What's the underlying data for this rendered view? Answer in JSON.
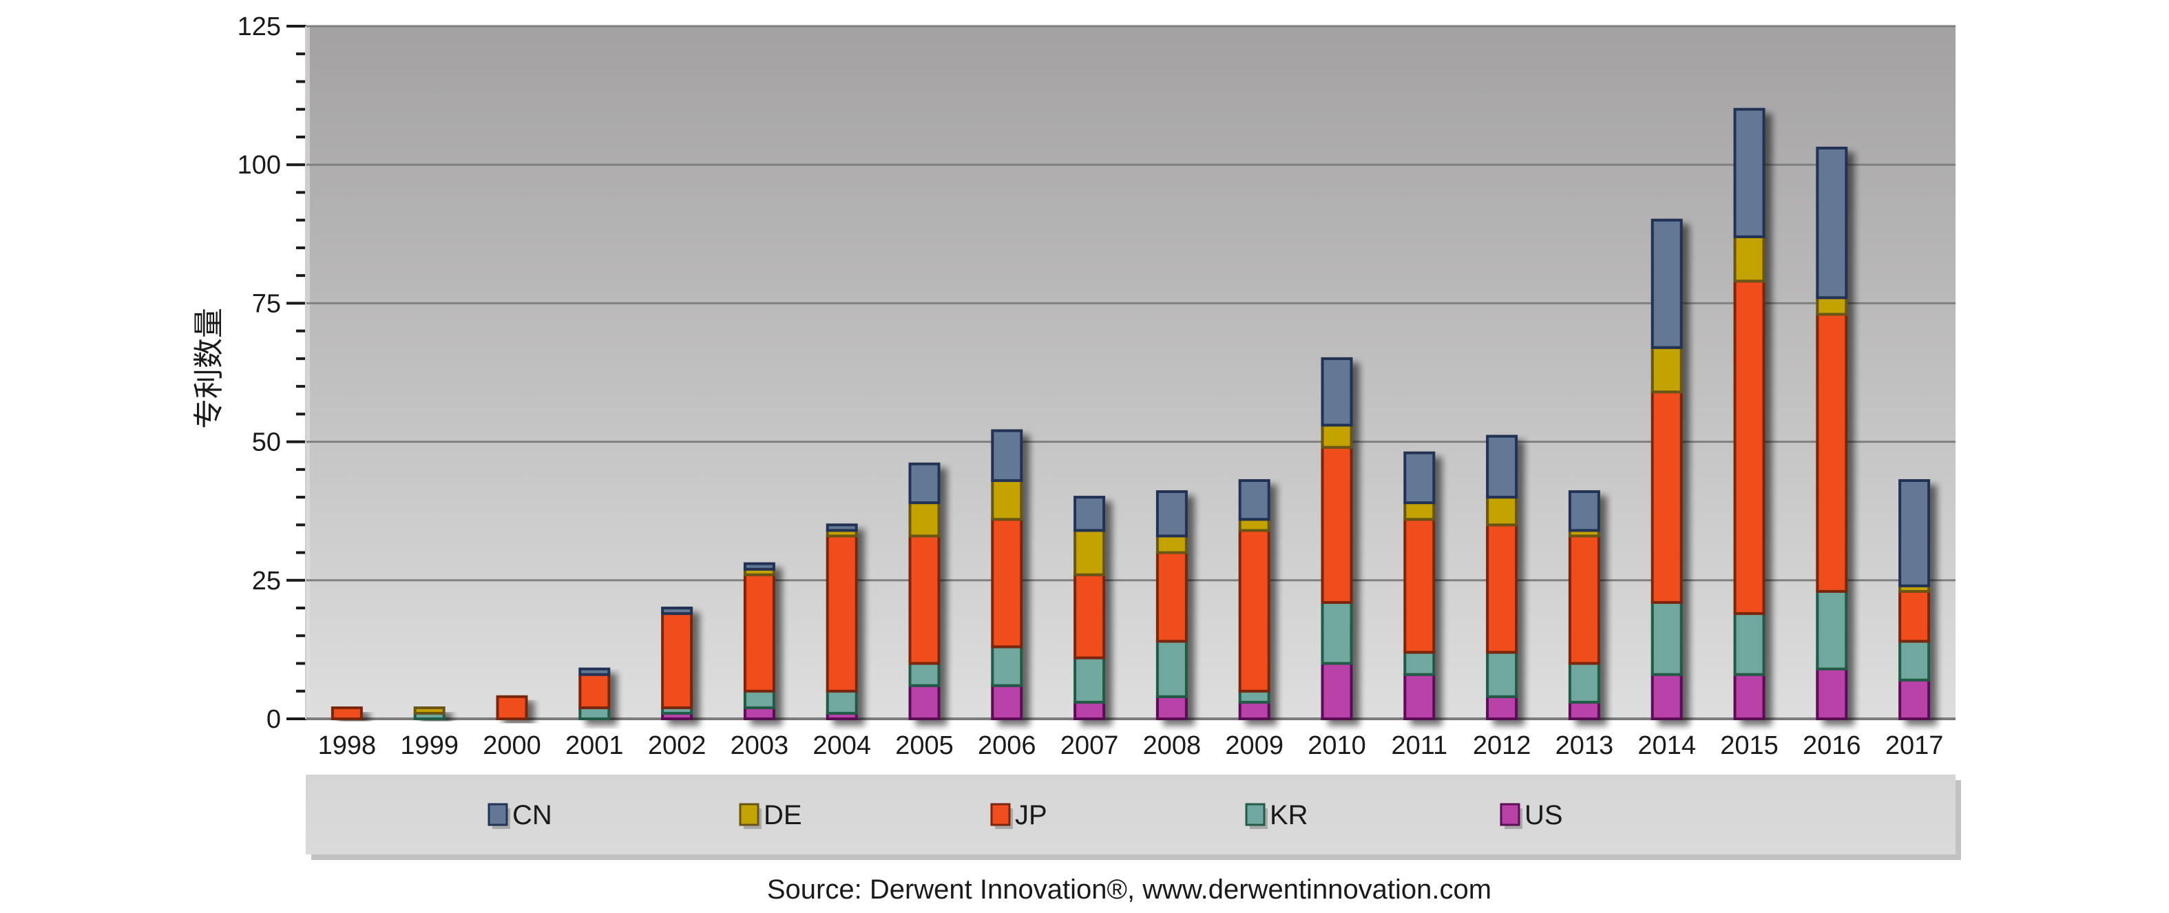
{
  "chart_data": {
    "type": "bar",
    "stacked": true,
    "title": "",
    "xlabel": "",
    "ylabel": "专利数量",
    "ylim": [
      0,
      125
    ],
    "yticks": [
      0,
      25,
      50,
      75,
      100,
      125
    ],
    "y_minor_step": 5,
    "grid": true,
    "legend_position": "bottom",
    "categories": [
      "1998",
      "1999",
      "2000",
      "2001",
      "2002",
      "2003",
      "2004",
      "2005",
      "2006",
      "2007",
      "2008",
      "2009",
      "2010",
      "2011",
      "2012",
      "2013",
      "2014",
      "2015",
      "2016",
      "2017"
    ],
    "series": [
      {
        "name": "US",
        "color": "#b842a8",
        "border": "#5a0f55",
        "values": [
          0,
          0,
          0,
          0,
          1,
          2,
          1,
          6,
          6,
          3,
          4,
          3,
          10,
          8,
          4,
          3,
          8,
          8,
          9,
          7
        ]
      },
      {
        "name": "KR",
        "color": "#6fa8a0",
        "border": "#245a47",
        "values": [
          0,
          1,
          0,
          2,
          1,
          3,
          4,
          4,
          7,
          8,
          10,
          2,
          11,
          4,
          8,
          7,
          13,
          11,
          14,
          7
        ]
      },
      {
        "name": "JP",
        "color": "#f04e1e",
        "border": "#7a2510",
        "values": [
          2,
          0,
          4,
          6,
          17,
          21,
          28,
          23,
          23,
          15,
          16,
          29,
          28,
          24,
          23,
          23,
          38,
          60,
          50,
          9
        ]
      },
      {
        "name": "DE",
        "color": "#c4a304",
        "border": "#6a5518",
        "values": [
          0,
          1,
          0,
          0,
          0,
          1,
          1,
          6,
          7,
          8,
          3,
          2,
          4,
          3,
          5,
          1,
          8,
          8,
          3,
          1
        ]
      },
      {
        "name": "CN",
        "color": "#627895",
        "border": "#233355",
        "values": [
          0,
          0,
          0,
          1,
          1,
          1,
          1,
          7,
          9,
          6,
          8,
          7,
          12,
          9,
          11,
          7,
          23,
          23,
          27,
          19
        ]
      }
    ],
    "legend_order": [
      "CN",
      "DE",
      "JP",
      "KR",
      "US"
    ],
    "source": "Source:  Derwent Innovation®, www.derwentinnovation.com"
  }
}
